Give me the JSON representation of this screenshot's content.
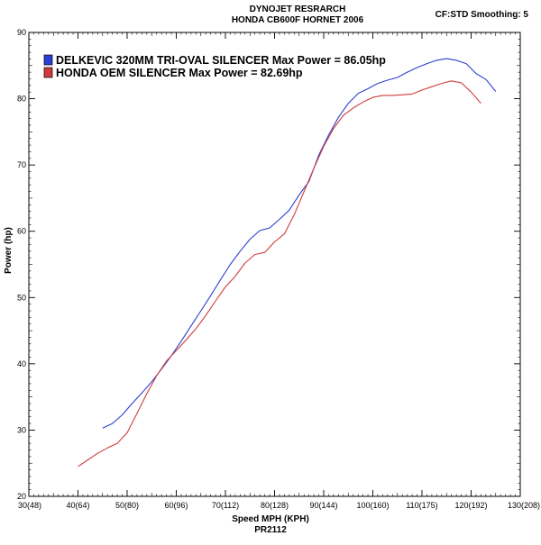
{
  "header": {
    "title_line1": "DYNOJET RESRARCH",
    "title_line2": "HONDA CB600F HORNET 2006",
    "corner_info": "CF:STD Smoothing: 5"
  },
  "chart_data": {
    "type": "line",
    "xlabel": "Speed MPH (KPH)",
    "xlabel_sub": "PR2112",
    "ylabel": "Power (hp)",
    "xlim": [
      30,
      130
    ],
    "ylim": [
      20,
      90
    ],
    "x_ticks": [
      {
        "value": 30,
        "label": "30(48)"
      },
      {
        "value": 40,
        "label": "40(64)"
      },
      {
        "value": 50,
        "label": "50(80)"
      },
      {
        "value": 60,
        "label": "60(96)"
      },
      {
        "value": 70,
        "label": "70(112)"
      },
      {
        "value": 80,
        "label": "80(128)"
      },
      {
        "value": 90,
        "label": "90(144)"
      },
      {
        "value": 100,
        "label": "100(160)"
      },
      {
        "value": 110,
        "label": "110(175)"
      },
      {
        "value": 120,
        "label": "120(192)"
      },
      {
        "value": 130,
        "label": "130(208)"
      }
    ],
    "y_ticks": [
      20,
      30,
      40,
      50,
      60,
      70,
      80,
      90
    ],
    "grid": false,
    "legend_position": "top-left",
    "series": [
      {
        "name": "DELKEVIC 320MM TRI-OVAL SILENCER  Max Power = 86.05hp",
        "color": "#2b3fd1",
        "x": [
          45,
          47,
          49,
          51,
          53,
          55,
          57,
          59,
          61,
          63,
          65,
          67,
          69,
          71,
          73,
          75,
          77,
          79,
          81,
          83,
          85,
          87,
          89,
          91,
          93,
          95,
          97,
          99,
          101,
          103,
          105,
          107,
          109,
          111,
          113,
          115,
          117,
          119,
          121,
          123,
          125
        ],
        "y": [
          30.3,
          31.0,
          32.3,
          34.0,
          35.6,
          37.3,
          39.2,
          41.2,
          43.4,
          45.7,
          48.0,
          50.3,
          52.7,
          55.0,
          57.0,
          58.8,
          60.1,
          60.5,
          61.8,
          63.2,
          65.5,
          67.5,
          71.5,
          74.5,
          77.2,
          79.3,
          80.8,
          81.5,
          82.3,
          82.8,
          83.2,
          84.0,
          84.7,
          85.3,
          85.8,
          86.05,
          85.8,
          85.3,
          83.8,
          82.9,
          81.1
        ]
      },
      {
        "name": "HONDA OEM SILENCER Max Power = 82.69hp",
        "color": "#d13b3b",
        "x": [
          40,
          42,
          44,
          46,
          48,
          50,
          52,
          54,
          56,
          58,
          60,
          62,
          64,
          66,
          68,
          70,
          72,
          74,
          76,
          78,
          80,
          82,
          84,
          86,
          88,
          90,
          92,
          94,
          96,
          98,
          100,
          102,
          104,
          106,
          108,
          110,
          112,
          114,
          116,
          118,
          120,
          122
        ],
        "y": [
          24.5,
          25.5,
          26.5,
          27.3,
          28.0,
          29.6,
          32.5,
          35.5,
          38.2,
          40.4,
          42.0,
          43.6,
          45.3,
          47.3,
          49.5,
          51.6,
          53.2,
          55.2,
          56.5,
          56.8,
          58.4,
          59.6,
          62.5,
          66.0,
          69.5,
          72.8,
          75.5,
          77.5,
          78.6,
          79.5,
          80.2,
          80.5,
          80.5,
          80.6,
          80.7,
          81.3,
          81.8,
          82.3,
          82.69,
          82.4,
          81.0,
          79.3
        ]
      }
    ]
  }
}
